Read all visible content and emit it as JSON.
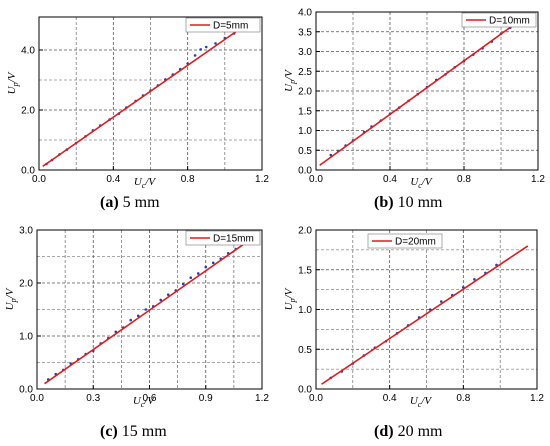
{
  "figure": {
    "captions": [
      {
        "letter": "(a)",
        "text": " 5 mm"
      },
      {
        "letter": "(b)",
        "text": " 10 mm"
      },
      {
        "letter": "(c)",
        "text": " 15 mm"
      },
      {
        "letter": "(d)",
        "text": " 20 mm"
      }
    ],
    "colors": {
      "fit_line": "#e31a1c",
      "points": "#1f3fbf",
      "grid": "#555555"
    }
  },
  "chart_data": [
    {
      "type": "scatter",
      "legend": "D=5mm",
      "legend_position": "top-right",
      "xlabel": "U_c/V",
      "ylabel": "U_p/V",
      "xlim": [
        0,
        1.2
      ],
      "ylim": [
        0,
        5.1
      ],
      "xticks": [
        0.0,
        0.4,
        0.8,
        1.2
      ],
      "xtick_labels": [
        "0.0",
        "0.4",
        "0.8",
        "1.2"
      ],
      "yticks": [
        0,
        2,
        4
      ],
      "ytick_labels": [
        "0.0",
        "2.0",
        "4.0"
      ],
      "grid": true,
      "fit": {
        "x": [
          0.02,
          1.15
        ],
        "y": [
          0.12,
          5.0
        ]
      },
      "points": {
        "x": [
          0.04,
          0.07,
          0.11,
          0.15,
          0.2,
          0.25,
          0.29,
          0.33,
          0.38,
          0.43,
          0.47,
          0.52,
          0.56,
          0.6,
          0.64,
          0.68,
          0.72,
          0.76,
          0.8,
          0.84,
          0.87,
          0.9,
          0.95,
          1.0,
          1.05,
          1.1
        ],
        "y": [
          0.2,
          0.33,
          0.52,
          0.68,
          0.9,
          1.12,
          1.32,
          1.48,
          1.68,
          1.88,
          2.08,
          2.3,
          2.48,
          2.65,
          2.82,
          3.02,
          3.18,
          3.36,
          3.55,
          3.82,
          4.02,
          4.1,
          4.22,
          4.4,
          4.55,
          4.75
        ]
      }
    },
    {
      "type": "scatter",
      "legend": "D=10mm",
      "legend_position": "top-right",
      "xlabel": "U_c/V",
      "ylabel": "U_p/V",
      "xlim": [
        0,
        1.2
      ],
      "ylim": [
        0,
        4.0
      ],
      "xticks": [
        0.0,
        0.4,
        0.8,
        1.2
      ],
      "xtick_labels": [
        "0.0",
        "0.4",
        "0.8",
        "1.2"
      ],
      "yticks": [
        0,
        0.5,
        1,
        1.5,
        2,
        2.5,
        3,
        3.5,
        4
      ],
      "ytick_labels": [
        "0.0",
        "0.5",
        "1.0",
        "1.5",
        "2.0",
        "2.5",
        "3.0",
        "3.5",
        "4.0"
      ],
      "grid": true,
      "fit": {
        "x": [
          0.02,
          1.15
        ],
        "y": [
          0.12,
          3.95
        ]
      },
      "points": {
        "x": [
          0.08,
          0.12,
          0.16,
          0.2,
          0.26,
          0.3,
          0.35,
          0.4,
          0.45,
          0.5,
          0.55,
          0.6,
          0.65,
          0.7,
          0.75,
          0.8,
          0.85,
          0.9,
          0.95,
          1.0,
          1.05,
          1.1,
          1.13
        ],
        "y": [
          0.38,
          0.48,
          0.62,
          0.75,
          0.96,
          1.1,
          1.25,
          1.42,
          1.58,
          1.75,
          1.92,
          2.1,
          2.28,
          2.42,
          2.6,
          2.76,
          2.92,
          3.08,
          3.25,
          3.45,
          3.6,
          3.78,
          3.9
        ]
      }
    },
    {
      "type": "scatter",
      "legend": "D=15mm",
      "legend_position": "top-right",
      "xlabel": "U_c/V",
      "ylabel": "U_p/V",
      "xlim": [
        0,
        1.2
      ],
      "ylim": [
        0,
        3.0
      ],
      "xticks": [
        0.0,
        0.3,
        0.6,
        0.9,
        1.2
      ],
      "xtick_labels": [
        "0.0",
        "0.3",
        "0.6",
        "0.9",
        "1.2"
      ],
      "yticks": [
        0,
        1,
        2,
        3
      ],
      "ytick_labels": [
        "0.0",
        "1.0",
        "2.0",
        "3.0"
      ],
      "grid": true,
      "fit": {
        "x": [
          0.04,
          1.15
        ],
        "y": [
          0.1,
          2.85
        ]
      },
      "points": {
        "x": [
          0.06,
          0.1,
          0.14,
          0.18,
          0.22,
          0.26,
          0.3,
          0.34,
          0.38,
          0.42,
          0.46,
          0.5,
          0.54,
          0.58,
          0.62,
          0.66,
          0.7,
          0.74,
          0.78,
          0.82,
          0.86,
          0.9,
          0.94,
          0.98,
          1.02,
          1.06,
          1.1,
          1.14
        ],
        "y": [
          0.18,
          0.28,
          0.36,
          0.48,
          0.56,
          0.66,
          0.72,
          0.86,
          0.96,
          1.08,
          1.16,
          1.3,
          1.38,
          1.5,
          1.56,
          1.68,
          1.78,
          1.86,
          1.98,
          2.1,
          2.18,
          2.3,
          2.38,
          2.46,
          2.56,
          2.64,
          2.74,
          2.84
        ]
      }
    },
    {
      "type": "scatter",
      "legend": "D=20mm",
      "legend_position": "top-left",
      "xlabel": "U_c/V",
      "ylabel": "U_p/V",
      "xlim": [
        0,
        1.2
      ],
      "ylim": [
        0,
        2.0
      ],
      "xticks": [
        0.0,
        0.4,
        0.8,
        1.2
      ],
      "xtick_labels": [
        "0.0",
        "0.4",
        "0.8",
        "1.2"
      ],
      "yticks": [
        0,
        0.5,
        1,
        1.5,
        2
      ],
      "ytick_labels": [
        "0.0",
        "0.5",
        "1.0",
        "1.5",
        "2.0"
      ],
      "grid": true,
      "fit": {
        "x": [
          0.03,
          1.15
        ],
        "y": [
          0.06,
          1.8
        ]
      },
      "points": {
        "x": [
          0.08,
          0.14,
          0.2,
          0.26,
          0.32,
          0.38,
          0.44,
          0.5,
          0.56,
          0.62,
          0.68,
          0.74,
          0.8,
          0.86,
          0.92,
          0.98
        ],
        "y": [
          0.14,
          0.22,
          0.32,
          0.42,
          0.52,
          0.6,
          0.7,
          0.8,
          0.9,
          1.0,
          1.1,
          1.18,
          1.28,
          1.38,
          1.46,
          1.56
        ]
      }
    }
  ]
}
